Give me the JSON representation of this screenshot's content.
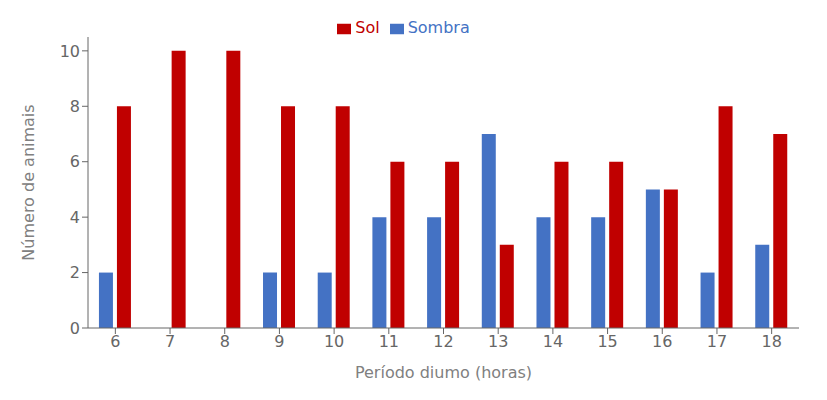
{
  "chart_data": {
    "type": "bar",
    "xlabel": "Período diumo (horas)",
    "ylabel": "Número de animais",
    "categories": [
      "6",
      "7",
      "8",
      "9",
      "10",
      "11",
      "12",
      "13",
      "14",
      "15",
      "16",
      "17",
      "18"
    ],
    "series": [
      {
        "name": "Sombra",
        "color": "#4472c4",
        "values": [
          2,
          0,
          0,
          2,
          2,
          4,
          4,
          7,
          4,
          4,
          5,
          2,
          3
        ]
      },
      {
        "name": "Sol",
        "color": "#c00000",
        "values": [
          8,
          10,
          10,
          8,
          8,
          6,
          6,
          3,
          6,
          6,
          5,
          8,
          7
        ]
      }
    ],
    "ylim": [
      0,
      10.5
    ],
    "yticks": [
      0,
      2,
      4,
      6,
      8,
      10
    ],
    "grid": false,
    "legend": "top"
  }
}
